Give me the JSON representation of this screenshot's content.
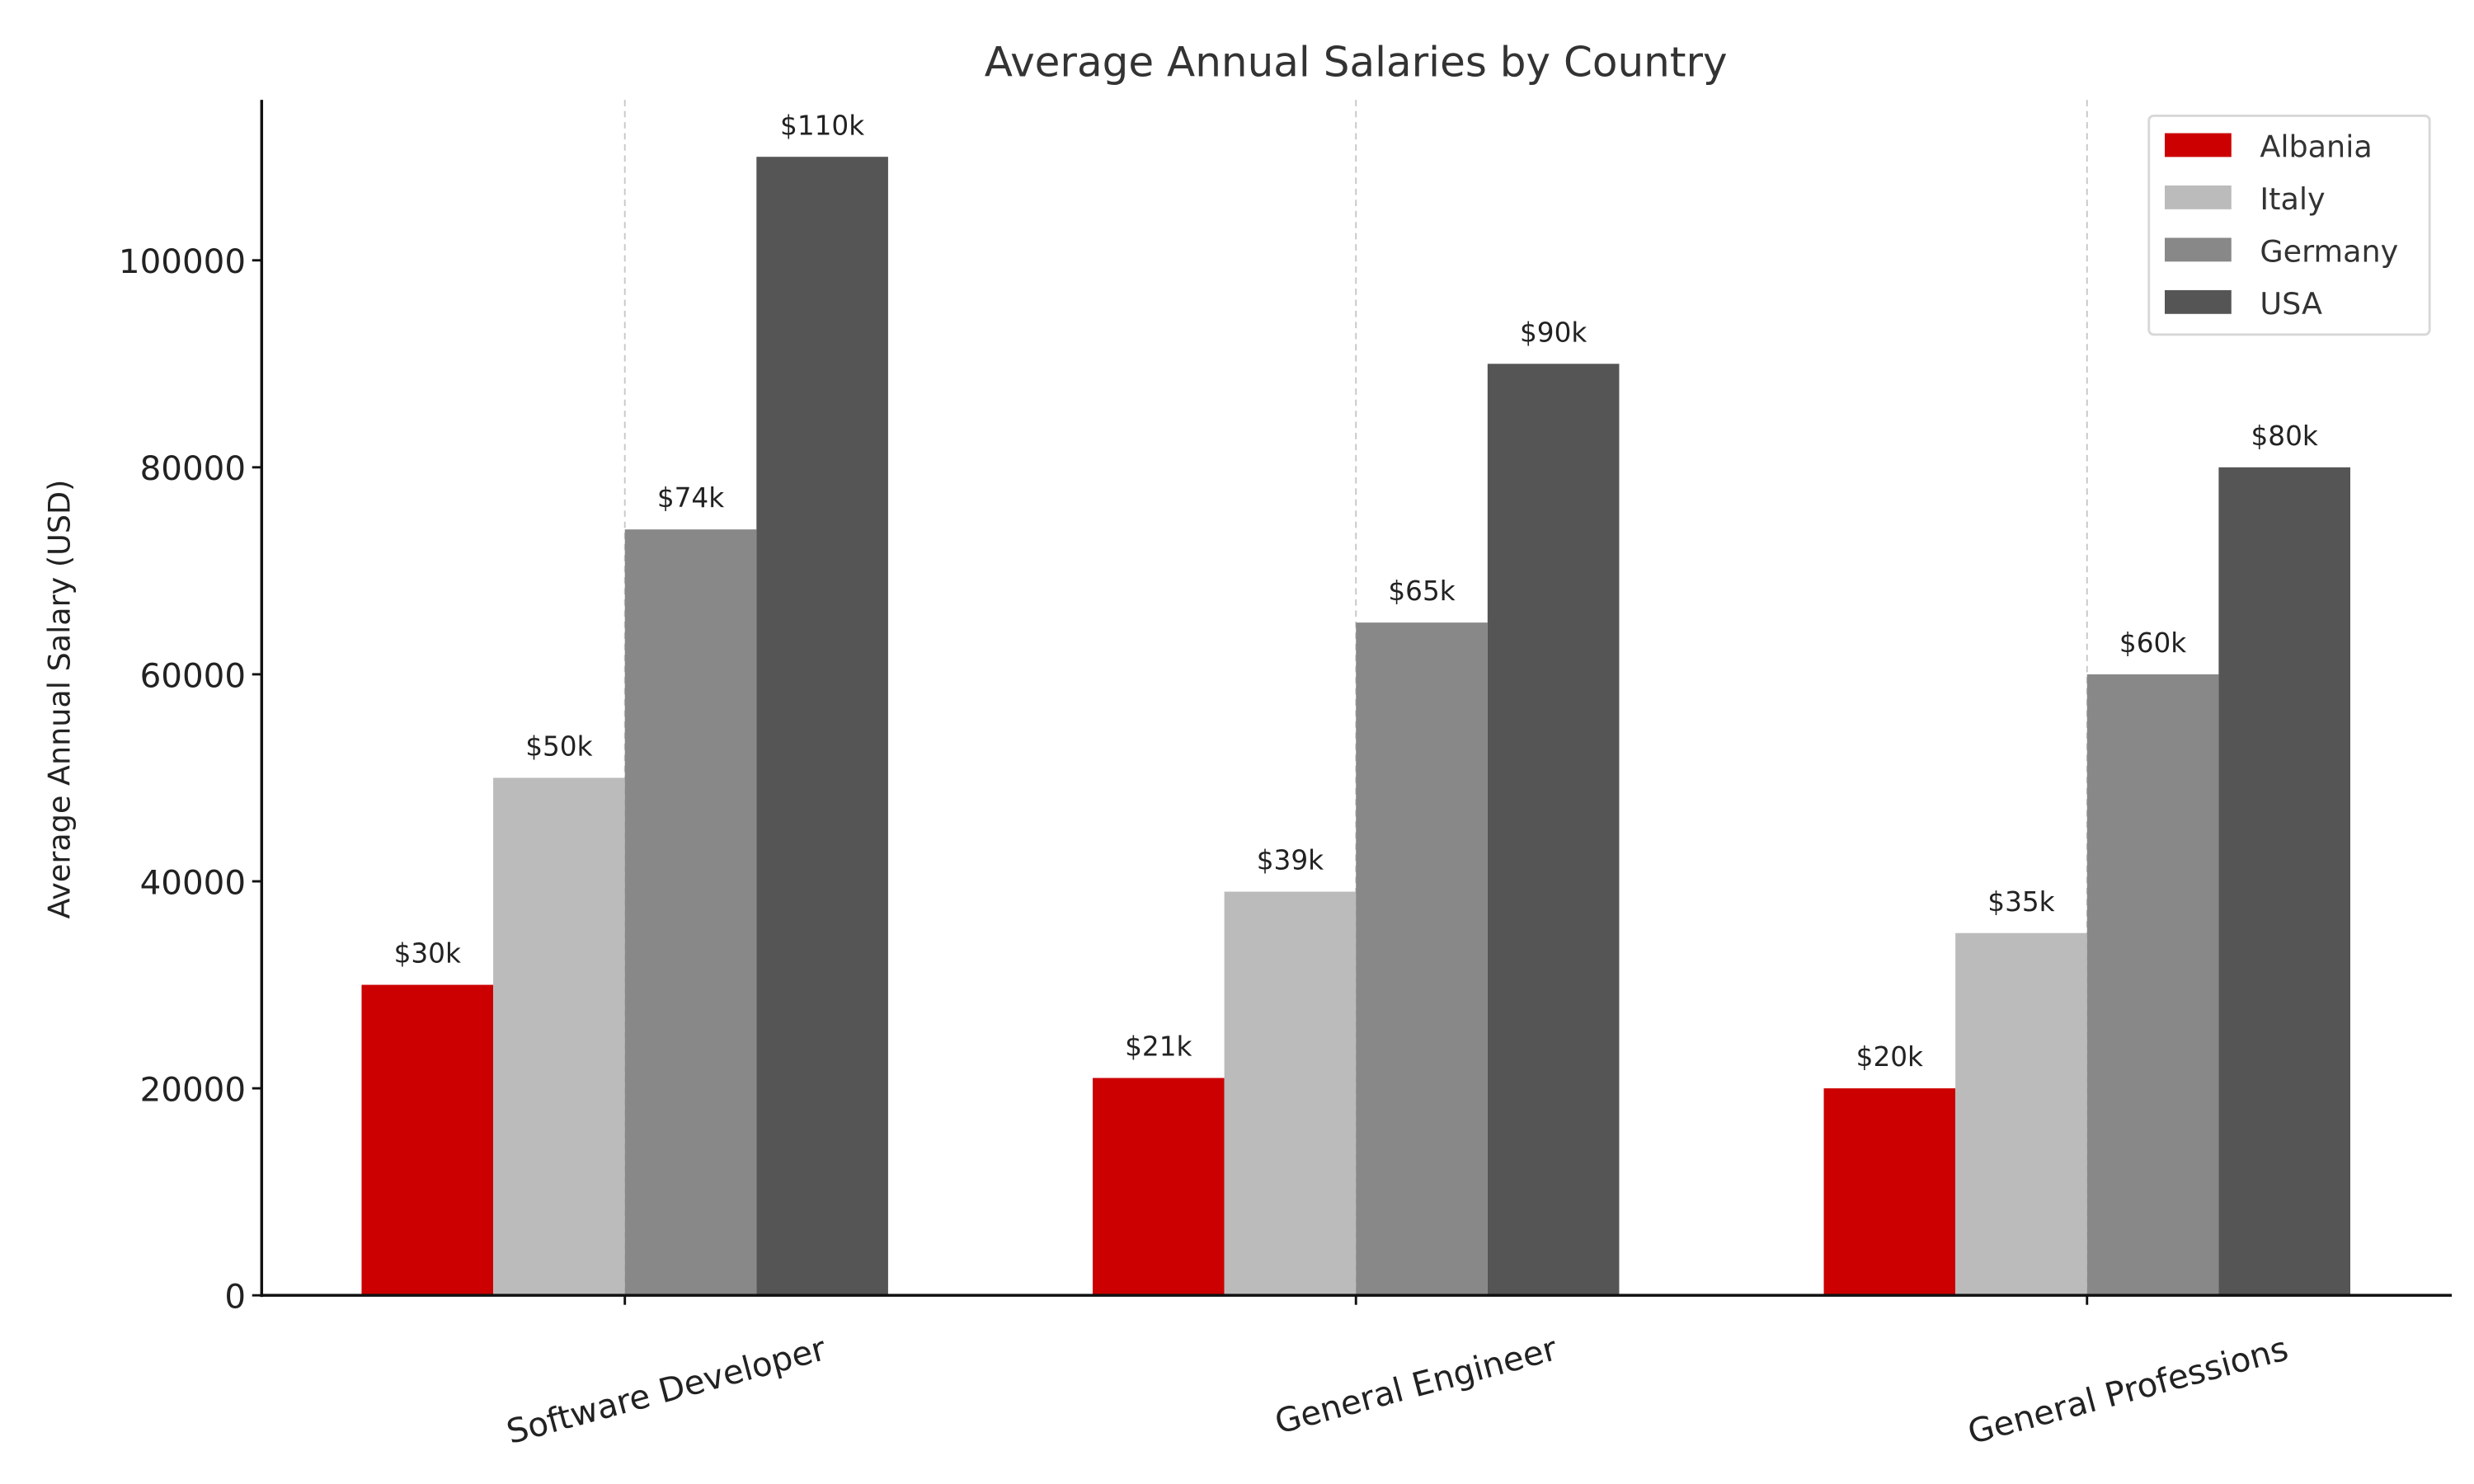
{
  "chart_data": {
    "type": "bar",
    "title": "Average Annual Salaries by Country",
    "xlabel": "",
    "ylabel": "Average Annual Salary (USD)",
    "categories": [
      "Software Developer",
      "General Engineer",
      "General Professions"
    ],
    "series": [
      {
        "name": "Albania",
        "color": "#cc0000",
        "values": [
          30000,
          21000,
          20000
        ],
        "labels": [
          "$30k",
          "$21k",
          "$20k"
        ]
      },
      {
        "name": "Italy",
        "color": "#bbbbbb",
        "values": [
          50000,
          39000,
          35000
        ],
        "labels": [
          "$50k",
          "$39k",
          "$35k"
        ]
      },
      {
        "name": "Germany",
        "color": "#888888",
        "values": [
          74000,
          65000,
          60000
        ],
        "labels": [
          "$74k",
          "$65k",
          "$60k"
        ]
      },
      {
        "name": "USA",
        "color": "#555555",
        "values": [
          110000,
          90000,
          80000
        ],
        "labels": [
          "$110k",
          "$90k",
          "$80k"
        ]
      }
    ],
    "yticks": [
      "0",
      "20000",
      "40000",
      "60000",
      "80000",
      "100000"
    ],
    "ytick_values": [
      0,
      20000,
      40000,
      60000,
      80000,
      100000
    ],
    "ylim": [
      0,
      115500
    ],
    "grid": "x dashed at category centers",
    "legend": "top-right",
    "xtick_rotation": 15
  }
}
